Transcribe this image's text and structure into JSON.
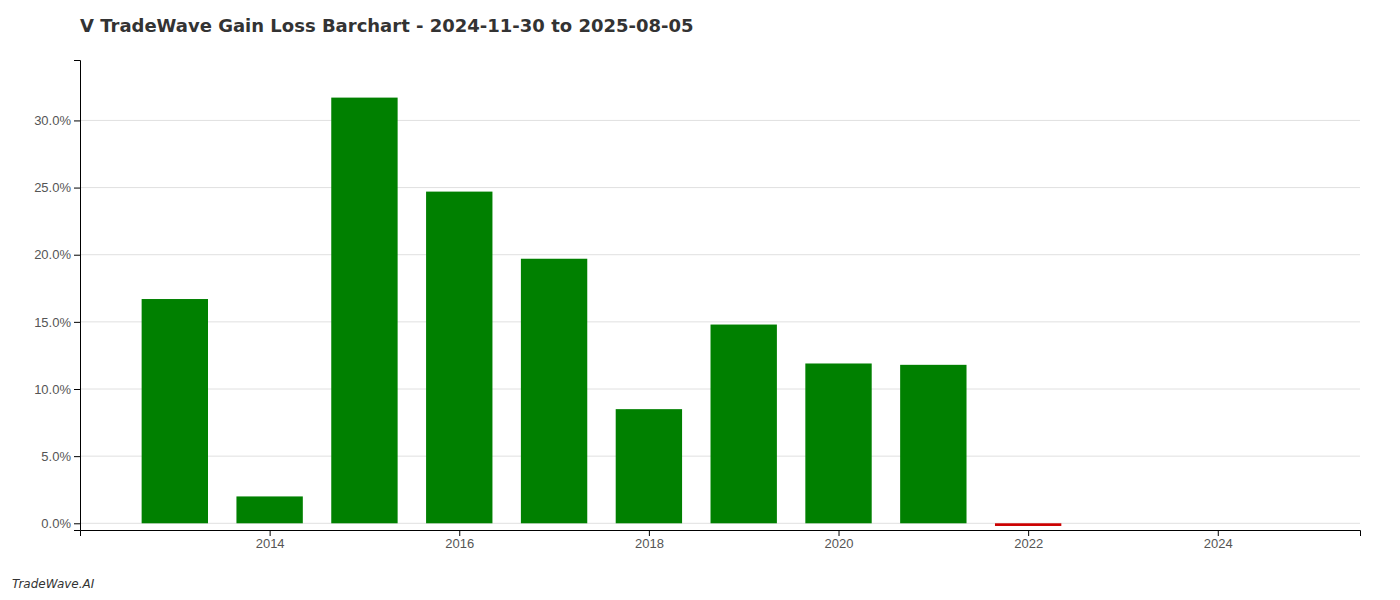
{
  "chart_data": {
    "type": "bar",
    "title": "V TradeWave Gain Loss Barchart - 2024-11-30 to 2025-08-05",
    "annotations": [
      "TradeWave.AI"
    ],
    "x": [
      2013,
      2014,
      2015,
      2016,
      2017,
      2018,
      2019,
      2020,
      2021,
      2022,
      2023
    ],
    "values": [
      0.167,
      0.02,
      0.317,
      0.247,
      0.197,
      0.085,
      0.148,
      0.119,
      0.118,
      -0.002,
      0.0
    ],
    "colors": [
      "#008000",
      "#008000",
      "#008000",
      "#008000",
      "#008000",
      "#008000",
      "#008000",
      "#008000",
      "#008000",
      "#cc0000",
      "#008000"
    ],
    "xlim": [
      2012.0,
      2025.5
    ],
    "xticks": [
      2014,
      2016,
      2018,
      2020,
      2022,
      2024
    ],
    "ylim": [
      -0.005,
      0.345
    ],
    "yticks": [
      {
        "value": 0.0,
        "label": "0.0%"
      },
      {
        "value": 0.05,
        "label": "5.0%"
      },
      {
        "value": 0.1,
        "label": "10.0%"
      },
      {
        "value": 0.15,
        "label": "15.0%"
      },
      {
        "value": 0.2,
        "label": "20.0%"
      },
      {
        "value": 0.25,
        "label": "25.0%"
      },
      {
        "value": 0.3,
        "label": "30.0%"
      }
    ],
    "grid": true
  }
}
